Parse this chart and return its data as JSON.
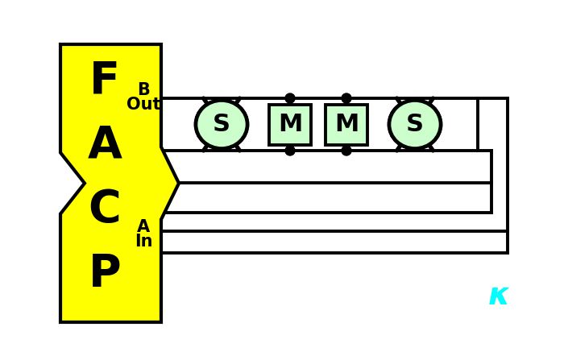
{
  "bg_color": "#ffffff",
  "facp_yellow": "#ffff00",
  "facp_border": "#000000",
  "wire_color": "#000000",
  "sensor_fill": "#ccffcc",
  "module_fill": "#ccffcc",
  "wire_lw": 2.8,
  "border_lw": 3.0,
  "facp_letters": [
    "F",
    "A",
    "C",
    "P"
  ],
  "b_out_label": [
    "B",
    "Out"
  ],
  "a_in_label": [
    "A",
    "In"
  ],
  "signature_color": "#00ffff",
  "signature_text": "κ",
  "figw": 7.0,
  "figh": 4.42,
  "dpi": 100
}
